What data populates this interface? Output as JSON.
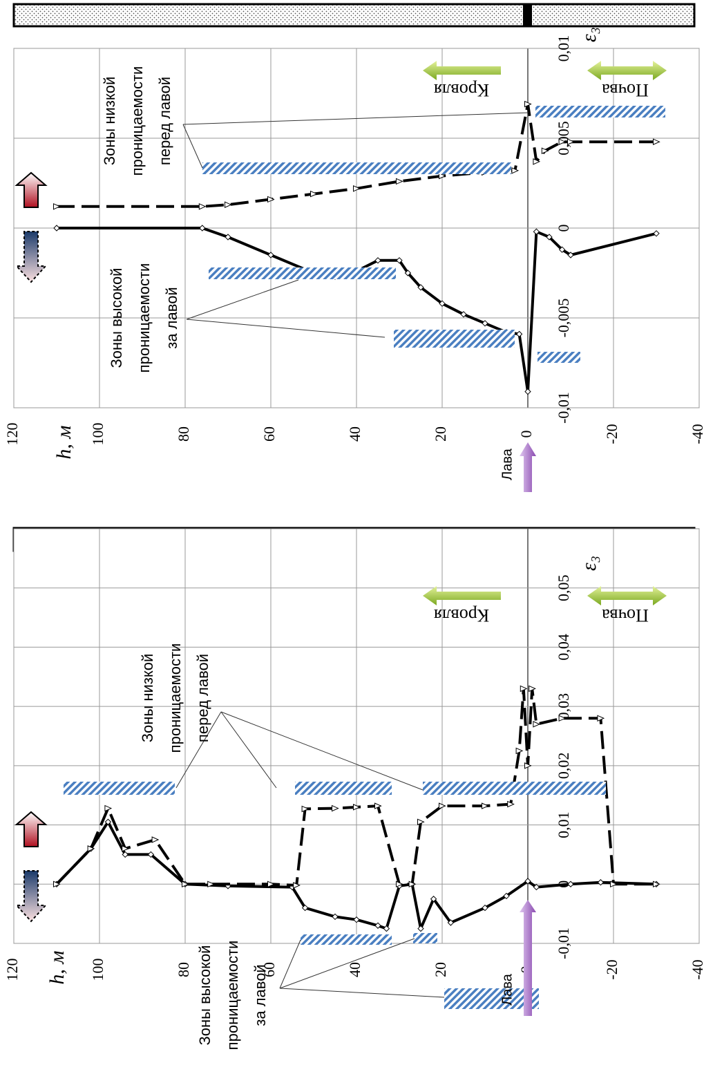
{
  "chart_data": [
    {
      "type": "line",
      "xlabel": "h, м",
      "ylabel": "ε₃",
      "xlim": [
        120,
        -40
      ],
      "xticks": [
        120,
        100,
        80,
        60,
        40,
        20,
        0,
        -20,
        -40
      ],
      "ylim": [
        -0.01,
        0.01
      ],
      "yticks": [
        {
          "value": -0.01,
          "label": "-0,01"
        },
        {
          "value": -0.005,
          "label": "-0,005"
        },
        0,
        {
          "value": 0.005,
          "label": "0,005"
        },
        {
          "value": 0.01,
          "label": "0,01"
        }
      ],
      "grid": true,
      "series": [
        {
          "color": "#000000",
          "style": "solid",
          "marker": "diamond",
          "x": [
            110,
            76,
            70,
            60,
            50,
            45,
            40,
            35,
            30,
            28,
            25,
            20,
            15,
            10,
            5,
            2,
            0,
            -2,
            -5,
            -8,
            -10,
            -30
          ],
          "values": [
            0,
            0,
            -0.0005,
            -0.0015,
            -0.0025,
            -0.0027,
            -0.0024,
            -0.0018,
            -0.0018,
            -0.0025,
            -0.0033,
            -0.0042,
            -0.0048,
            -0.0053,
            -0.0058,
            -0.0059,
            -0.0091,
            -0.0002,
            -0.0005,
            -0.0012,
            -0.0015,
            -0.0003
          ]
        },
        {
          "color": "#000000",
          "style": "dashed",
          "marker": "triangle",
          "x": [
            110,
            76,
            70,
            60,
            50,
            40,
            30,
            20,
            10,
            3,
            0,
            -2,
            -4,
            -8,
            -10,
            -30
          ],
          "values": [
            0.0012,
            0.0012,
            0.0013,
            0.0016,
            0.0019,
            0.0022,
            0.0026,
            0.0029,
            0.0031,
            0.0032,
            0.0069,
            0.0037,
            0.0043,
            0.0048,
            0.0048,
            0.0048
          ]
        }
      ],
      "annotations": {
        "low": [
          "Зоны низкой",
          "проницаемости",
          "перед лавой"
        ],
        "high": [
          "Зоны высокой",
          "проницаемости",
          "за лавой"
        ],
        "roof": "Кровля",
        "floor": "Почва",
        "face": "Лава"
      }
    },
    {
      "type": "line",
      "xlabel": "h, м",
      "ylabel": "ε₃",
      "xlim": [
        120,
        -40
      ],
      "xticks": [
        120,
        100,
        80,
        60,
        40,
        20,
        0,
        -20,
        -40
      ],
      "ylim": [
        -0.01,
        0.06
      ],
      "yticks": [
        {
          "value": -0.01,
          "label": "-0,01"
        },
        0,
        {
          "value": 0.01,
          "label": "0,01"
        },
        {
          "value": 0.02,
          "label": "0,02"
        },
        {
          "value": 0.03,
          "label": "0,03"
        },
        {
          "value": 0.04,
          "label": "0,04"
        },
        {
          "value": 0.05,
          "label": "0,05"
        }
      ],
      "grid": true,
      "series": [
        {
          "color": "#000000",
          "style": "solid",
          "marker": "diamond",
          "x": [
            110,
            102,
            98,
            94,
            88,
            80,
            70,
            55,
            52,
            45,
            40,
            35,
            33,
            30,
            27,
            25,
            22,
            18,
            10,
            5,
            0,
            -2,
            -10,
            -17,
            -30
          ],
          "values": [
            0,
            0.006,
            0.0105,
            0.005,
            0.005,
            0,
            -0.0003,
            -0.0005,
            -0.004,
            -0.0055,
            -0.006,
            -0.007,
            -0.0075,
            -0.0003,
            0,
            -0.0075,
            -0.0025,
            -0.0065,
            -0.004,
            -0.002,
            0.0005,
            -0.0005,
            0,
            0.0003,
            0
          ]
        },
        {
          "color": "#000000",
          "style": "dashed",
          "marker": "triangle",
          "x": [
            110,
            102,
            98,
            94,
            87,
            80,
            74,
            60,
            54,
            52,
            45,
            40,
            35,
            30,
            27,
            25,
            20,
            10,
            4,
            2,
            1,
            0,
            -1,
            -2,
            -8,
            -17,
            -20,
            -30
          ],
          "values": [
            0,
            0.006,
            0.0128,
            0.006,
            0.0075,
            0,
            0,
            0,
            -0.0002,
            0.0127,
            0.0128,
            0.013,
            0.0132,
            0,
            0,
            0.0105,
            0.0132,
            0.0132,
            0.0135,
            0.0225,
            0.033,
            0.02,
            0.033,
            0.027,
            0.028,
            0.028,
            0,
            0
          ]
        }
      ],
      "annotations": {
        "low": [
          "Зоны низкой",
          "проницаемости",
          "перед лавой"
        ],
        "high": [
          "Зоны высокой",
          "проницаемости",
          "за лавой"
        ],
        "roof": "Кровля",
        "floor": "Почва",
        "face": "Лава"
      }
    }
  ]
}
